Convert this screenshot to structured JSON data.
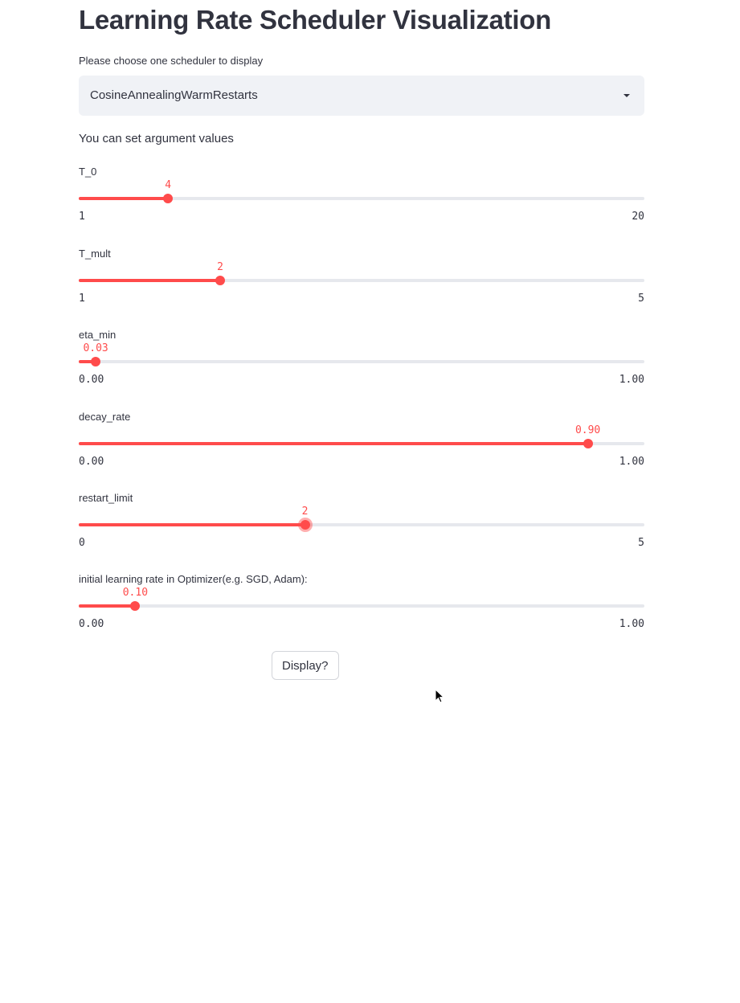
{
  "page": {
    "title": "Learning Rate Scheduler Visualization",
    "choose_label": "Please choose one scheduler to display",
    "intro_text": "You can set argument values"
  },
  "scheduler_select": {
    "selected": "CosineAnnealingWarmRestarts",
    "icon": "chevron-down-icon"
  },
  "sliders": [
    {
      "label": "T_0",
      "value": "4",
      "min": "1",
      "max": "20",
      "numeric_value": 4,
      "range": [
        1,
        20
      ]
    },
    {
      "label": "T_mult",
      "value": "2",
      "min": "1",
      "max": "5",
      "numeric_value": 2,
      "range": [
        1,
        5
      ]
    },
    {
      "label": "eta_min",
      "value": "0.03",
      "min": "0.00",
      "max": "1.00",
      "numeric_value": 0.03,
      "range": [
        0,
        1
      ]
    },
    {
      "label": "decay_rate",
      "value": "0.90",
      "min": "0.00",
      "max": "1.00",
      "numeric_value": 0.9,
      "range": [
        0,
        1
      ]
    },
    {
      "label": "restart_limit",
      "value": "2",
      "min": "0",
      "max": "5",
      "numeric_value": 2,
      "range": [
        0,
        5
      ]
    },
    {
      "label": "initial learning rate in Optimizer(e.g. SGD, Adam):",
      "value": "0.10",
      "min": "0.00",
      "max": "1.00",
      "numeric_value": 0.1,
      "range": [
        0,
        1
      ]
    }
  ],
  "display_button": {
    "label": "Display?"
  },
  "colors": {
    "accent": "#ff4b4b",
    "text": "#31333f",
    "select_bg": "#f0f2f6",
    "track": "#e6e8ed"
  }
}
